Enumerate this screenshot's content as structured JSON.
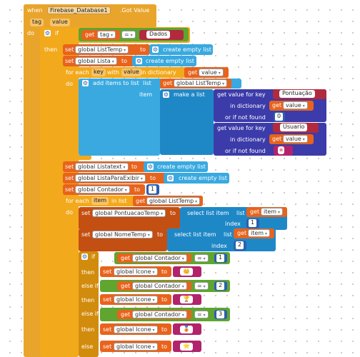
{
  "event": {
    "when": "when",
    "component": "Firebase_Database1",
    "event_name": ".Got Value",
    "param1": "tag",
    "param2": "value",
    "do": "do"
  },
  "if1": {
    "kw_if": "if",
    "get": "get",
    "tag": "tag",
    "eq": "=",
    "str": "Dados",
    "then": "then"
  },
  "s1": {
    "set": "set",
    "var": "global ListTemp",
    "to": "to",
    "create": "create empty list"
  },
  "s2": {
    "set": "set",
    "var": "global Lista",
    "to": "to",
    "create": "create empty list"
  },
  "foreach1": {
    "for_each": "for each",
    "key": "key",
    "with": "with",
    "value": "value",
    "in_dict": "in dictionary",
    "get": "get",
    "get_var": "value",
    "do": "do"
  },
  "add": {
    "label": "add items to list",
    "list": "list",
    "get": "get",
    "var": "global ListTemp",
    "item": "item",
    "make": "make a list"
  },
  "gv1": {
    "label": "get value for key",
    "key_str": "Pontuação",
    "in_dict": "in dictionary",
    "get": "get",
    "var": "value",
    "not_found": "or if not found",
    "num": "0"
  },
  "gv2": {
    "label": "get value for key",
    "key_str": "Usuario",
    "in_dict": "in dictionary",
    "get": "get",
    "var": "value",
    "not_found": "or if not found",
    "str": "▪"
  },
  "s3": {
    "set": "set",
    "var": "global Listatext",
    "to": "to",
    "create": "create empty list"
  },
  "s4": {
    "set": "set",
    "var": "global ListaParaExibir",
    "to": "to",
    "create": "create empty list"
  },
  "s5": {
    "set": "set",
    "var": "global Contador",
    "to": "to",
    "num": "1"
  },
  "foreach2": {
    "for_each": "for each",
    "item": "item",
    "in_list": "in list",
    "get": "get",
    "var": "global ListTemp",
    "do": "do"
  },
  "s6": {
    "set": "set",
    "var": "global PontuacaoTemp",
    "to": "to",
    "select": "select list item",
    "list": "list",
    "get": "get",
    "get_var": "item",
    "index": "index",
    "num": "1"
  },
  "s7": {
    "set": "set",
    "var": "global NomeTemp",
    "to": "to",
    "select": "select list item",
    "list": "list",
    "get": "get",
    "get_var": "item",
    "index": "index",
    "num": "2"
  },
  "if2": {
    "kw_if": "if",
    "then": "then",
    "else_if": "else if",
    "else": "else"
  },
  "c1": {
    "get": "get",
    "var": "global Contador",
    "eq": "=",
    "num": "1"
  },
  "c2": {
    "get": "get",
    "var": "global Contador",
    "eq": "=",
    "num": "2"
  },
  "c3": {
    "get": "get",
    "var": "global Contador",
    "eq": "=",
    "num": "3"
  },
  "si1": {
    "set": "set",
    "var": "global Icone",
    "to": "to",
    "str": "👑"
  },
  "si2": {
    "set": "set",
    "var": "global Icone",
    "to": "to",
    "str": "🏆"
  },
  "si3": {
    "set": "set",
    "var": "global Icone",
    "to": "to",
    "str": "🥉"
  },
  "si4": {
    "set": "set",
    "var": "global Icone",
    "to": "to",
    "str": "⭐"
  }
}
